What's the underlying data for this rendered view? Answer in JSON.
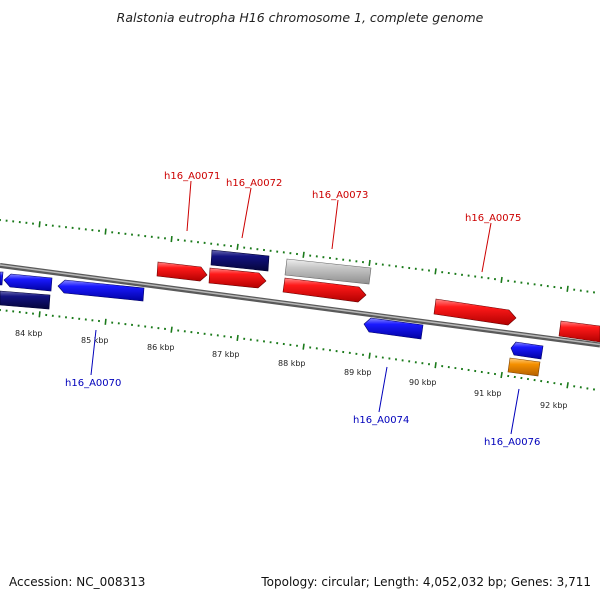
{
  "title": "Ralstonia eutropha H16 chromosome 1, complete genome",
  "footer": {
    "accession": "Accession: NC_008313",
    "stats": "Topology: circular; Length: 4,052,032 bp; Genes: 3,711"
  },
  "colors": {
    "forward_gene": "#ee1111",
    "reverse_gene": "#1a1aee",
    "dark_gene": "#111177",
    "grey_gene": "#c0c0c0",
    "orange_gene": "#f08800",
    "forward_label": "#cc0000",
    "reverse_label": "#0000bb",
    "backbone": "#8a8a8a",
    "tick": "#1a7a1a"
  },
  "scale": {
    "labels": [
      "84 kbp",
      "85 kbp",
      "86 kbp",
      "87 kbp",
      "88 kbp",
      "89 kbp",
      "90 kbp",
      "91 kbp",
      "92 kbp"
    ]
  },
  "genes": {
    "labeled": [
      {
        "name": "h16_A0070",
        "strand": "reverse"
      },
      {
        "name": "h16_A0071",
        "strand": "forward"
      },
      {
        "name": "h16_A0072",
        "strand": "forward"
      },
      {
        "name": "h16_A0073",
        "strand": "forward"
      },
      {
        "name": "h16_A0074",
        "strand": "reverse"
      },
      {
        "name": "h16_A0075",
        "strand": "forward"
      },
      {
        "name": "h16_A0076",
        "strand": "reverse"
      }
    ]
  }
}
